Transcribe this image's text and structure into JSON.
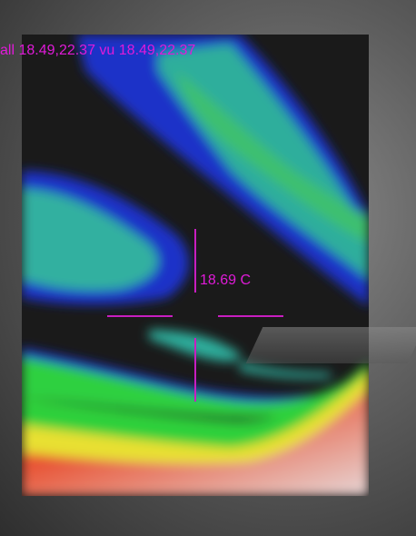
{
  "thermal_view": {
    "range_readout": "all 18.49,22.37 vu 18.49,22.37",
    "spot_temperature": "18.69 C",
    "colors": {
      "overlay_text": "#e01ad8",
      "crosshair": "#c81ec0",
      "cold": "#1e2cc8",
      "cool": "#2fb6a0",
      "mid": "#2fd23a",
      "warm": "#e0e020",
      "hot": "#e03a3a"
    }
  }
}
